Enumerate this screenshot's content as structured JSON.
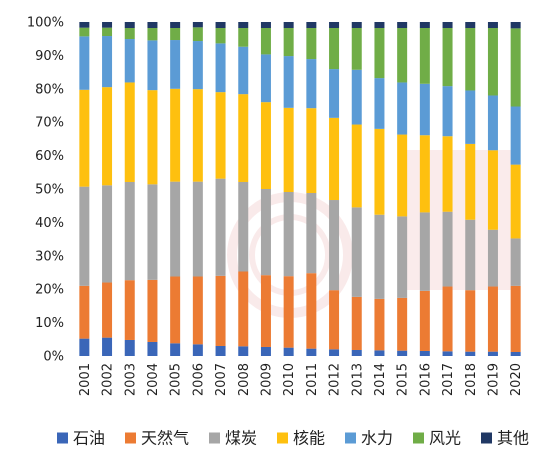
{
  "chart_data": {
    "type": "bar",
    "stacked": true,
    "percent_stacked": true,
    "categories": [
      "2001",
      "2002",
      "2003",
      "2004",
      "2005",
      "2006",
      "2007",
      "2008",
      "2009",
      "2010",
      "2011",
      "2012",
      "2013",
      "2014",
      "2015",
      "2016",
      "2017",
      "2018",
      "2019",
      "2020"
    ],
    "y_ticks": [
      "0%",
      "10%",
      "20%",
      "30%",
      "40%",
      "50%",
      "60%",
      "70%",
      "80%",
      "90%",
      "100%"
    ],
    "ylim": [
      0,
      100
    ],
    "grid": false,
    "legend_position": "bottom",
    "series": [
      {
        "name": "石油",
        "color": "#3a66b8",
        "values": [
          5.2,
          5.5,
          4.8,
          4.2,
          3.8,
          3.5,
          3.0,
          2.9,
          2.7,
          2.5,
          2.2,
          2.0,
          1.8,
          1.7,
          1.6,
          1.5,
          1.4,
          1.3,
          1.3,
          1.2
        ]
      },
      {
        "name": "天然气",
        "color": "#ec7b33",
        "values": [
          15.8,
          16.5,
          17.9,
          18.6,
          20.0,
          20.3,
          21.0,
          22.4,
          21.5,
          21.4,
          22.6,
          17.7,
          15.9,
          15.4,
          15.8,
          18.0,
          19.4,
          18.4,
          19.5,
          19.8
        ]
      },
      {
        "name": "煤炭",
        "color": "#a6a6a6",
        "values": [
          29.7,
          29.1,
          29.4,
          28.6,
          28.4,
          28.4,
          29.1,
          26.8,
          25.8,
          25.2,
          24.0,
          27.0,
          26.8,
          25.2,
          24.4,
          23.5,
          22.4,
          21.1,
          17.0,
          14.2
        ]
      },
      {
        "name": "核能",
        "color": "#fec00f",
        "values": [
          29.0,
          29.4,
          29.8,
          28.2,
          27.8,
          27.7,
          25.9,
          26.3,
          26.0,
          25.2,
          25.4,
          24.6,
          24.8,
          25.7,
          24.5,
          23.1,
          22.6,
          22.7,
          23.8,
          22.1
        ]
      },
      {
        "name": "水力",
        "color": "#5b9bd5",
        "values": [
          16.0,
          15.3,
          13.0,
          14.9,
          14.6,
          14.4,
          14.6,
          14.2,
          14.3,
          15.5,
          14.7,
          14.6,
          16.4,
          15.2,
          15.6,
          15.4,
          15.0,
          16.0,
          16.4,
          17.4
        ]
      },
      {
        "name": "风光",
        "color": "#70ad47",
        "values": [
          2.6,
          2.5,
          3.3,
          3.7,
          3.6,
          4.1,
          4.6,
          5.6,
          7.9,
          8.4,
          9.3,
          12.3,
          12.5,
          15.0,
          16.3,
          16.7,
          17.4,
          18.7,
          20.2,
          23.4
        ]
      },
      {
        "name": "其他",
        "color": "#203864",
        "values": [
          1.7,
          1.7,
          1.8,
          1.8,
          1.8,
          1.6,
          1.8,
          1.8,
          1.8,
          1.8,
          1.8,
          1.8,
          1.8,
          1.8,
          1.8,
          1.8,
          1.8,
          1.8,
          1.8,
          1.9
        ]
      }
    ]
  }
}
